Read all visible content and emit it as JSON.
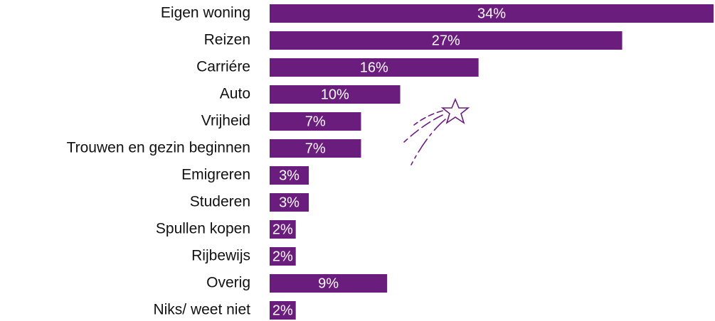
{
  "chart_data": {
    "type": "hbar",
    "categories": [
      "Eigen woning",
      "Reizen",
      "Carriére",
      "Auto",
      "Vrijheid",
      "Trouwen en gezin beginnen",
      "Emigreren",
      "Studeren",
      "Spullen kopen",
      "Rijbewijs",
      "Overig",
      "Niks/ weet niet"
    ],
    "values": [
      34,
      27,
      16,
      10,
      7,
      7,
      3,
      3,
      2,
      2,
      9,
      2
    ],
    "value_labels": [
      "34%",
      "27%",
      "16%",
      "10%",
      "7%",
      "7%",
      "3%",
      "3%",
      "2%",
      "2%",
      "9%",
      "2%"
    ],
    "color": "#6b1d7e"
  }
}
